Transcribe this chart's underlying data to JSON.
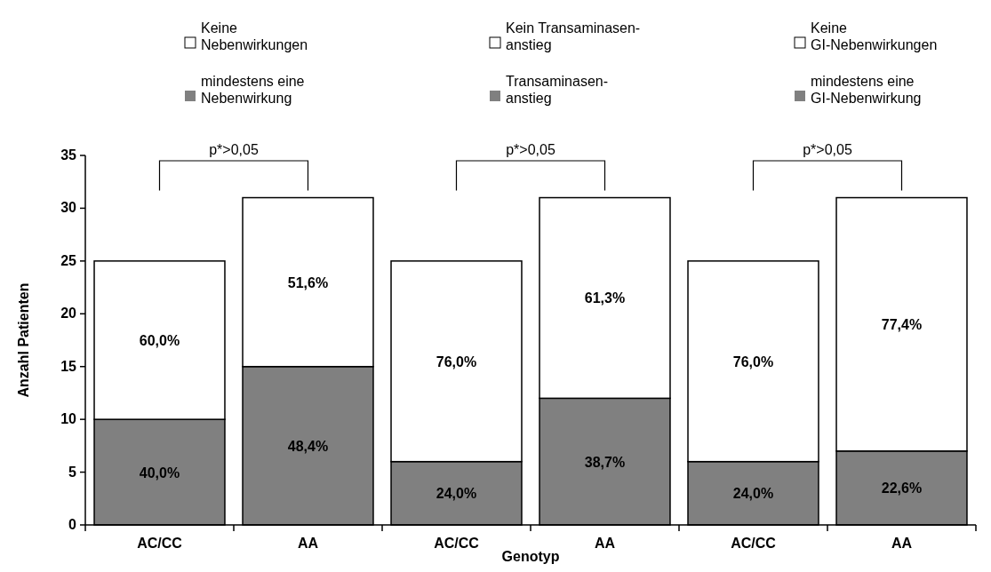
{
  "chart_data": {
    "type": "bar",
    "stacked": true,
    "xlabel": "Genotyp",
    "ylabel": "Anzahl Patienten",
    "categories": [
      "AC/CC",
      "AA",
      "AC/CC",
      "AA",
      "AC/CC",
      "AA"
    ],
    "series": [
      {
        "name": "mindestens eine\nNebenwirkung",
        "color": "#808080",
        "values": [
          10,
          15,
          null,
          null,
          null,
          null
        ]
      },
      {
        "name": "Keine\nNebenwirkungen",
        "color": "#ffffff",
        "values": [
          15,
          16,
          null,
          null,
          null,
          null
        ]
      },
      {
        "name": "Transaminasen-\nanstieg",
        "color": "#808080",
        "values": [
          null,
          null,
          6,
          12,
          null,
          null
        ]
      },
      {
        "name": "Kein Transaminasen-\nanstieg",
        "color": "#ffffff",
        "values": [
          null,
          null,
          19,
          19,
          null,
          null
        ]
      },
      {
        "name": "mindestens eine\nGI-Nebenwirkung",
        "color": "#808080",
        "values": [
          null,
          null,
          null,
          null,
          6,
          7
        ]
      },
      {
        "name": "Keine\nGI-Nebenwirkungen",
        "color": "#ffffff",
        "values": [
          null,
          null,
          null,
          null,
          19,
          24
        ]
      }
    ],
    "ylim": [
      0,
      35
    ],
    "yticks": [
      0,
      5,
      10,
      15,
      20,
      25,
      30,
      35
    ],
    "grid": false,
    "legend": "top",
    "annotations": [
      "p*>0,05",
      "p*>0,05",
      "p*>0,05",
      "40,0%",
      "48,4%",
      "60,0%",
      "51,6%",
      "24,0%",
      "38,7%",
      "76,0%",
      "61,3%",
      "24,0%",
      "22,6%",
      "76,0%",
      "77,4%"
    ]
  }
}
